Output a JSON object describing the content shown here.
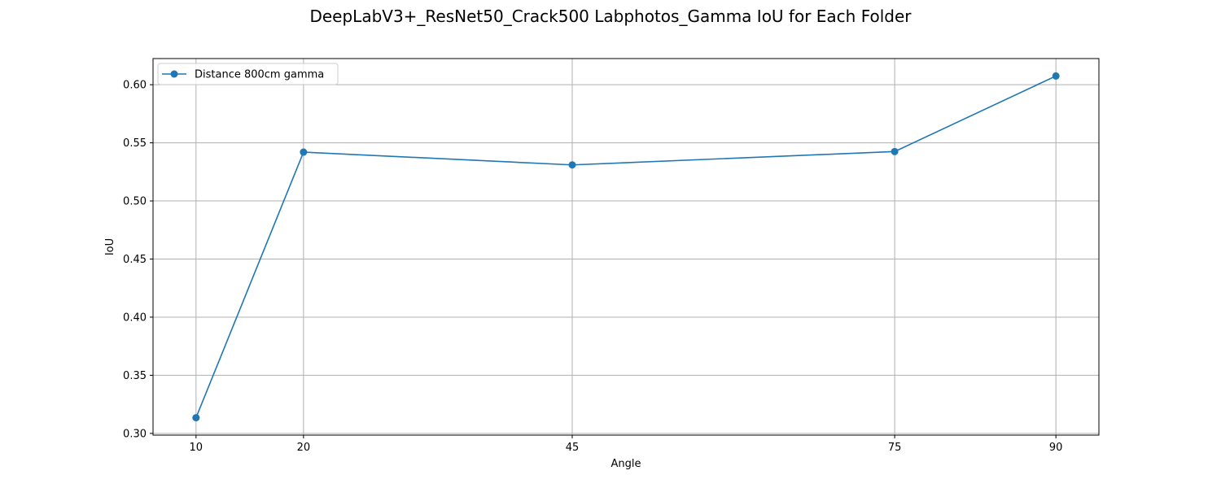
{
  "chart_data": {
    "type": "line",
    "title": "DeepLabV3+_ResNet50_Crack500 Labphotos_Gamma IoU for Each Folder",
    "xlabel": "Angle",
    "ylabel": "IoU",
    "x": [
      10,
      20,
      45,
      75,
      90
    ],
    "x_ticks": [
      "10",
      "20",
      "45",
      "75",
      "90"
    ],
    "y_ticks": [
      "0.30",
      "0.35",
      "0.40",
      "0.45",
      "0.50",
      "0.55",
      "0.60"
    ],
    "xlim": [
      6,
      94
    ],
    "ylim": [
      0.2985,
      0.6225
    ],
    "grid": true,
    "legend_position": "top-left",
    "series": [
      {
        "name": "Distance 800cm gamma",
        "values": [
          0.3135,
          0.542,
          0.531,
          0.5425,
          0.6075
        ],
        "color": "#1f77b4",
        "marker": "circle"
      }
    ]
  }
}
